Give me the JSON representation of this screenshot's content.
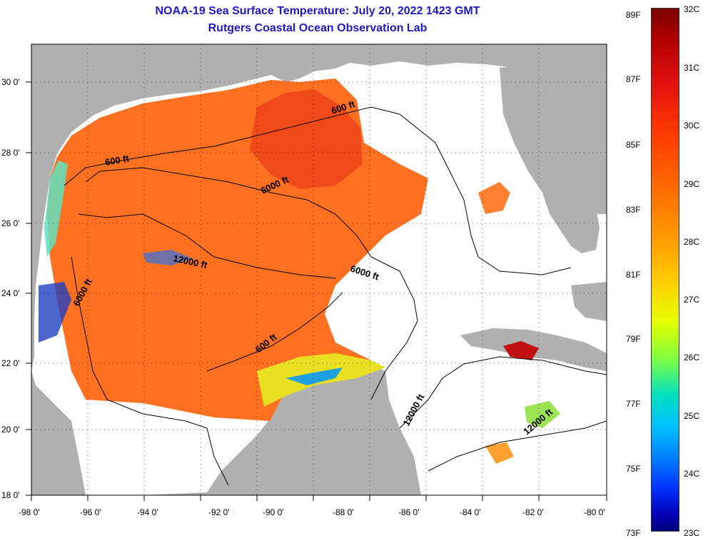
{
  "title_line1": "NOAA-19 Sea Surface Temperature:  July 20, 2022 1423 GMT",
  "title_line2": "Rutgers Coastal Ocean Observation Lab",
  "lon_ticks": [
    "-98 0'",
    "-96 0'",
    "-94 0'",
    "-92 0'",
    "-90 0'",
    "-88 0'",
    "-86 0'",
    "-84 0'",
    "-82 0'",
    "-80 0'"
  ],
  "lat_ticks": [
    "30 0'",
    "28 0'",
    "26 0'",
    "24 0'",
    "22 0'",
    "20 0'",
    "18 0'"
  ],
  "contour_labels": [
    {
      "text": "600 ft"
    },
    {
      "text": "600 ft"
    },
    {
      "text": "6000 ft"
    },
    {
      "text": "12000 ft"
    },
    {
      "text": "6000 ft"
    },
    {
      "text": "6000 ft"
    },
    {
      "text": "600 ft"
    },
    {
      "text": "12000 ft"
    },
    {
      "text": "12000 ft"
    }
  ],
  "colorbar": {
    "fahrenheit": [
      "89F",
      "87F",
      "85F",
      "83F",
      "81F",
      "79F",
      "77F",
      "75F",
      "73F"
    ],
    "celsius": [
      "32C",
      "31C",
      "30C",
      "29C",
      "28C",
      "27C",
      "26C",
      "25C",
      "24C",
      "23C"
    ]
  },
  "colors": {
    "land": "#b0b0b0",
    "no_data": "#ffffff",
    "warm": "#ff6a1a",
    "hot": "#f03818",
    "title": "#1a1acc"
  }
}
